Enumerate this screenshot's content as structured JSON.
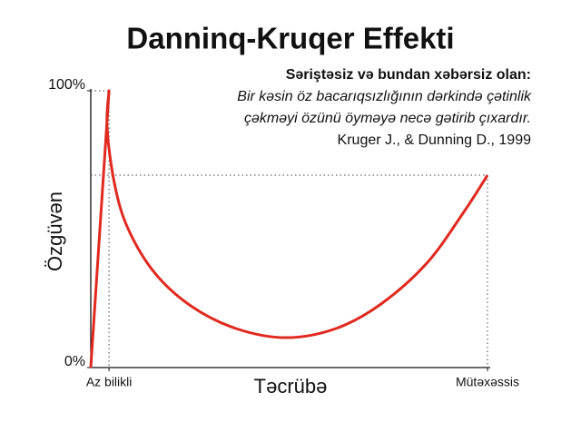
{
  "chart_data": {
    "type": "line",
    "title": "Danninq-Kruqer Effekti",
    "annotation_heading": "Səriştəsiz və bundan xəbərsiz olan:",
    "annotation_lines": [
      "Bir kəsin öz bacarıqsızlığının dərkində çətinlik",
      "çəkməyi özünü öyməyə necə gətirib çıxardır."
    ],
    "citation": "Kruger J., & Dunning D., 1999",
    "x_label": "Təcrübə",
    "y_label": "Özgüvən",
    "x": [
      0,
      4.6,
      4.1,
      5.9,
      9.2,
      16,
      25.2,
      36.6,
      49.2,
      61.8,
      73.2,
      84.7,
      93.8,
      100
    ],
    "series": [
      {
        "color": "#e0291f",
        "values": [
          0,
          100,
          86.9,
          67,
          50.8,
          34.4,
          22.3,
          14.1,
          10.8,
          14.1,
          23,
          37.7,
          55.7,
          69.5
        ]
      }
    ],
    "xlim": [
      0,
      100
    ],
    "ylim": [
      0,
      100
    ],
    "xticks": [
      {
        "value": 4.6,
        "label": "Az bilikli"
      },
      {
        "value": 100,
        "label": "Mütəxəssis"
      }
    ],
    "yticks": [
      {
        "value": 0,
        "label": "0%"
      },
      {
        "value": 100,
        "label": "100%"
      }
    ]
  }
}
